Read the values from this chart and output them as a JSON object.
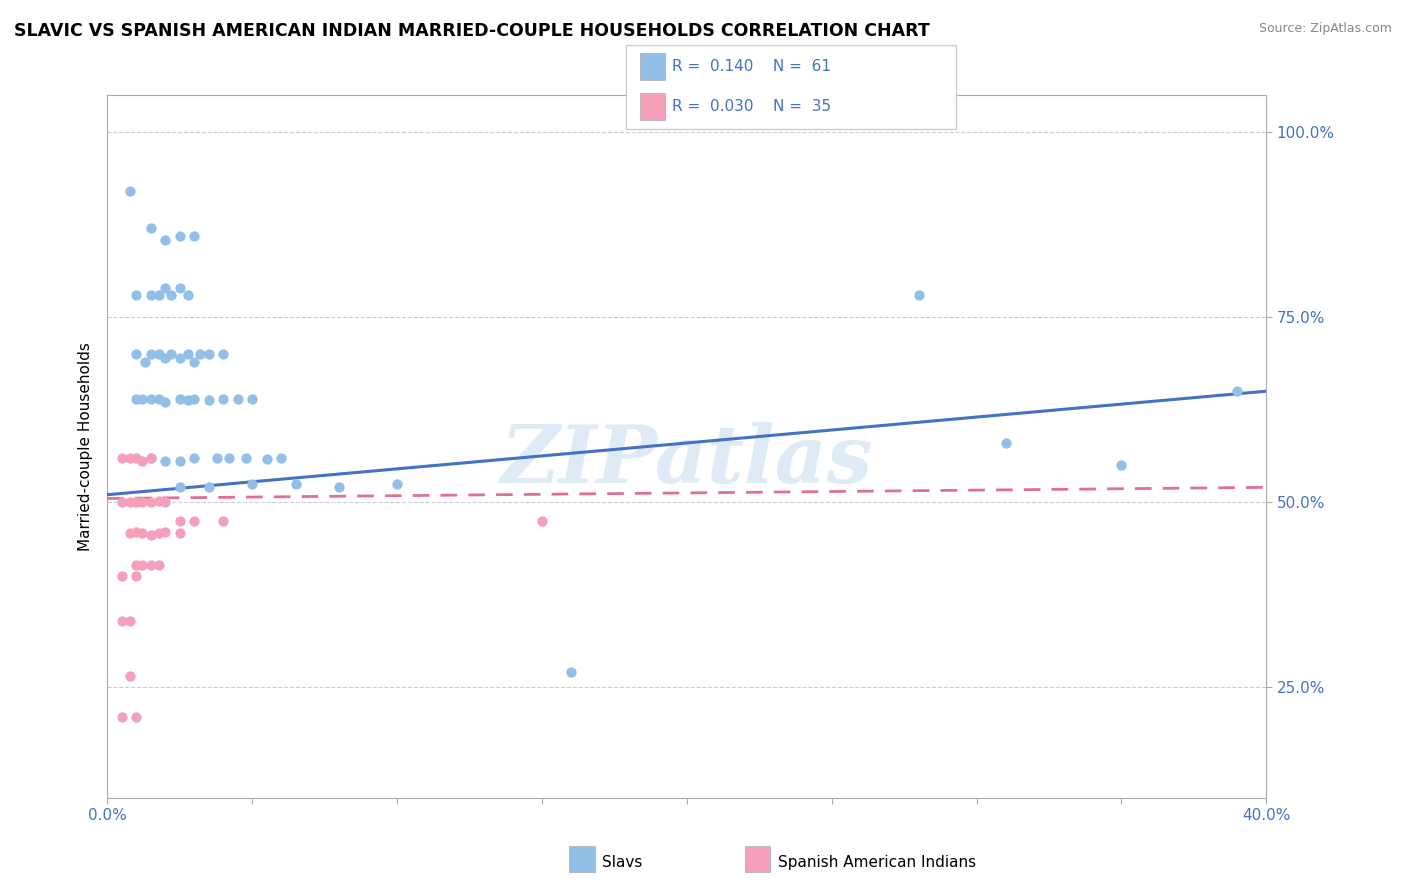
{
  "title": "SLAVIC VS SPANISH AMERICAN INDIAN MARRIED-COUPLE HOUSEHOLDS CORRELATION CHART",
  "source": "Source: ZipAtlas.com",
  "ylabel": "Married-couple Households",
  "xlim": [
    0.0,
    0.4
  ],
  "ylim": [
    0.1,
    1.05
  ],
  "slavs_color": "#92BFE8",
  "spanish_color": "#F4A0B8",
  "trendline_slavs_color": "#4472C4",
  "trendline_spanish_color": "#E07090",
  "background_color": "#FFFFFF",
  "watermark": "ZIPatlas",
  "slavs_x": [
    0.008,
    0.015,
    0.02,
    0.025,
    0.03,
    0.01,
    0.015,
    0.018,
    0.02,
    0.022,
    0.025,
    0.028,
    0.01,
    0.013,
    0.015,
    0.018,
    0.02,
    0.022,
    0.025,
    0.028,
    0.03,
    0.032,
    0.035,
    0.04,
    0.01,
    0.012,
    0.015,
    0.018,
    0.02,
    0.025,
    0.028,
    0.03,
    0.035,
    0.04,
    0.045,
    0.05,
    0.015,
    0.02,
    0.025,
    0.03,
    0.038,
    0.042,
    0.048,
    0.055,
    0.06,
    0.025,
    0.035,
    0.05,
    0.065,
    0.08,
    0.1,
    0.28,
    0.31,
    0.16,
    0.35,
    0.39
  ],
  "slavs_y": [
    0.92,
    0.87,
    0.855,
    0.86,
    0.86,
    0.78,
    0.78,
    0.78,
    0.79,
    0.78,
    0.79,
    0.78,
    0.7,
    0.69,
    0.7,
    0.7,
    0.695,
    0.7,
    0.695,
    0.7,
    0.69,
    0.7,
    0.7,
    0.7,
    0.64,
    0.64,
    0.64,
    0.64,
    0.635,
    0.64,
    0.638,
    0.64,
    0.638,
    0.64,
    0.64,
    0.64,
    0.56,
    0.555,
    0.555,
    0.56,
    0.56,
    0.56,
    0.56,
    0.558,
    0.56,
    0.52,
    0.52,
    0.525,
    0.525,
    0.52,
    0.525,
    0.78,
    0.58,
    0.27,
    0.55,
    0.65
  ],
  "spanish_x": [
    0.005,
    0.008,
    0.01,
    0.012,
    0.015,
    0.005,
    0.008,
    0.01,
    0.012,
    0.015,
    0.018,
    0.02,
    0.008,
    0.01,
    0.012,
    0.015,
    0.018,
    0.02,
    0.025,
    0.01,
    0.012,
    0.015,
    0.018,
    0.025,
    0.03,
    0.04,
    0.15,
    0.005,
    0.01,
    0.005,
    0.008,
    0.005,
    0.01,
    0.008
  ],
  "spanish_y": [
    0.56,
    0.56,
    0.56,
    0.555,
    0.56,
    0.5,
    0.5,
    0.5,
    0.5,
    0.5,
    0.502,
    0.5,
    0.458,
    0.46,
    0.458,
    0.455,
    0.458,
    0.46,
    0.458,
    0.415,
    0.415,
    0.415,
    0.415,
    0.475,
    0.475,
    0.475,
    0.475,
    0.4,
    0.4,
    0.34,
    0.34,
    0.21,
    0.21,
    0.265
  ],
  "trendline_slavs": [
    0.0,
    0.4,
    0.51,
    0.65
  ],
  "trendline_spanish": [
    0.0,
    0.4,
    0.505,
    0.52
  ]
}
